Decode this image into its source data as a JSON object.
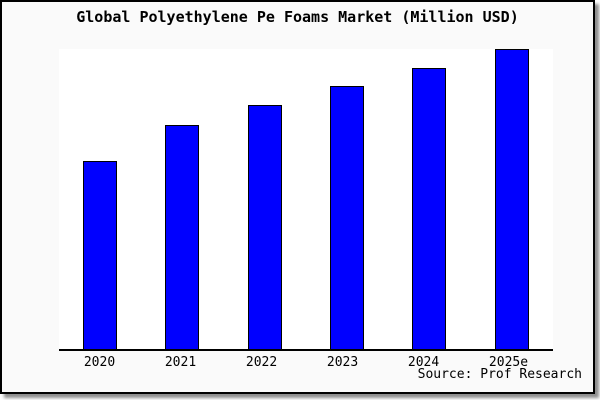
{
  "title": "Global Polyethylene Pe Foams Market (Million USD)",
  "source": "Source: Prof Research",
  "colors": {
    "bar_fill": "#0000ff",
    "bar_border": "#000000",
    "plot_bg": "#ffffff",
    "canvas_bg": "#fafafa",
    "axis": "#000000",
    "text": "#000000"
  },
  "chart_data": {
    "type": "bar",
    "title": "Global Polyethylene Pe Foams Market (Million USD)",
    "categories": [
      "2020",
      "2021",
      "2022",
      "2023",
      "2024",
      "2025e"
    ],
    "values": [
      62.8,
      74.8,
      81.4,
      87.7,
      93.7,
      100
    ],
    "value_basis": "relative bar heights, tallest bar (2025e) = 100; no y-axis tick labels or gridlines are shown in the image",
    "xlabel": "",
    "ylabel": "",
    "ylim": [
      0,
      100
    ],
    "grid": false,
    "legend": false,
    "source": "Source: Prof Research"
  }
}
